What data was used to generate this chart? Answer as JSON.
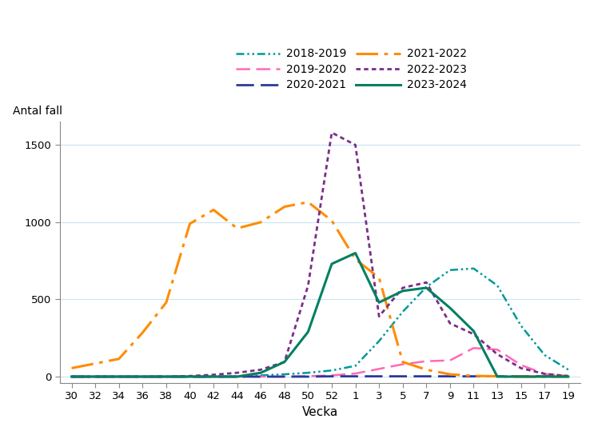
{
  "ylabel": "Antal fall",
  "xlabel": "Vecka",
  "x_tick_labels": [
    "30",
    "32",
    "34",
    "36",
    "38",
    "40",
    "42",
    "44",
    "46",
    "48",
    "50",
    "52",
    "1",
    "3",
    "5",
    "7",
    "9",
    "11",
    "13",
    "15",
    "17",
    "19"
  ],
  "ylim": [
    -40,
    1650
  ],
  "yticks": [
    0,
    500,
    1000,
    1500
  ],
  "seasons": {
    "2018-2019": {
      "color": "#009999",
      "linewidth": 1.8,
      "x": [
        0,
        1,
        2,
        3,
        4,
        5,
        6,
        7,
        8,
        9,
        10,
        11,
        12,
        13,
        14,
        15,
        16,
        17,
        18,
        19,
        20,
        21
      ],
      "y": [
        0,
        0,
        0,
        0,
        0,
        0,
        0,
        3,
        8,
        15,
        25,
        40,
        70,
        230,
        420,
        580,
        690,
        700,
        590,
        330,
        140,
        45
      ]
    },
    "2019-2020": {
      "color": "#FF69B4",
      "linewidth": 1.8,
      "x": [
        0,
        1,
        2,
        3,
        4,
        5,
        6,
        7,
        8,
        9,
        10,
        11,
        12,
        13,
        14,
        15,
        16,
        17,
        18,
        19,
        20,
        21
      ],
      "y": [
        0,
        0,
        0,
        0,
        0,
        0,
        0,
        0,
        0,
        0,
        3,
        8,
        20,
        50,
        80,
        100,
        105,
        185,
        175,
        75,
        18,
        4
      ]
    },
    "2020-2021": {
      "color": "#2B3A9E",
      "linewidth": 2.0,
      "x": [
        0,
        1,
        2,
        3,
        4,
        5,
        6,
        7,
        8,
        9,
        10,
        11,
        12,
        13,
        14,
        15,
        16,
        17,
        18,
        19,
        20,
        21
      ],
      "y": [
        0,
        0,
        0,
        0,
        0,
        0,
        0,
        0,
        0,
        0,
        0,
        2,
        2,
        2,
        2,
        2,
        2,
        2,
        2,
        2,
        2,
        2
      ]
    },
    "2021-2022": {
      "color": "#FF8C00",
      "linewidth": 2.2,
      "x": [
        0,
        1,
        2,
        3,
        4,
        5,
        6,
        7,
        8,
        9,
        10,
        11,
        12,
        13,
        14,
        15,
        16,
        17,
        18,
        19,
        20,
        21
      ],
      "y": [
        55,
        85,
        115,
        285,
        480,
        990,
        1080,
        960,
        1000,
        1100,
        1130,
        1010,
        760,
        640,
        95,
        45,
        15,
        5,
        2,
        0,
        0,
        0
      ]
    },
    "2022-2023": {
      "color": "#7B2D8B",
      "linewidth": 2.0,
      "x": [
        0,
        1,
        2,
        3,
        4,
        5,
        6,
        7,
        8,
        9,
        10,
        11,
        12,
        13,
        14,
        15,
        16,
        17,
        18,
        19,
        20,
        21
      ],
      "y": [
        0,
        0,
        0,
        0,
        0,
        4,
        12,
        25,
        45,
        95,
        590,
        1580,
        1500,
        390,
        575,
        610,
        345,
        275,
        145,
        55,
        18,
        4
      ]
    },
    "2023-2024": {
      "color": "#008060",
      "linewidth": 2.2,
      "x": [
        0,
        1,
        2,
        3,
        4,
        5,
        6,
        7,
        8,
        9,
        10,
        11,
        12,
        13,
        14,
        15,
        16,
        17,
        18,
        19,
        20,
        21
      ],
      "y": [
        0,
        0,
        0,
        0,
        0,
        0,
        0,
        0,
        25,
        95,
        290,
        730,
        800,
        480,
        555,
        575,
        445,
        295,
        0,
        0,
        0,
        0
      ]
    }
  }
}
